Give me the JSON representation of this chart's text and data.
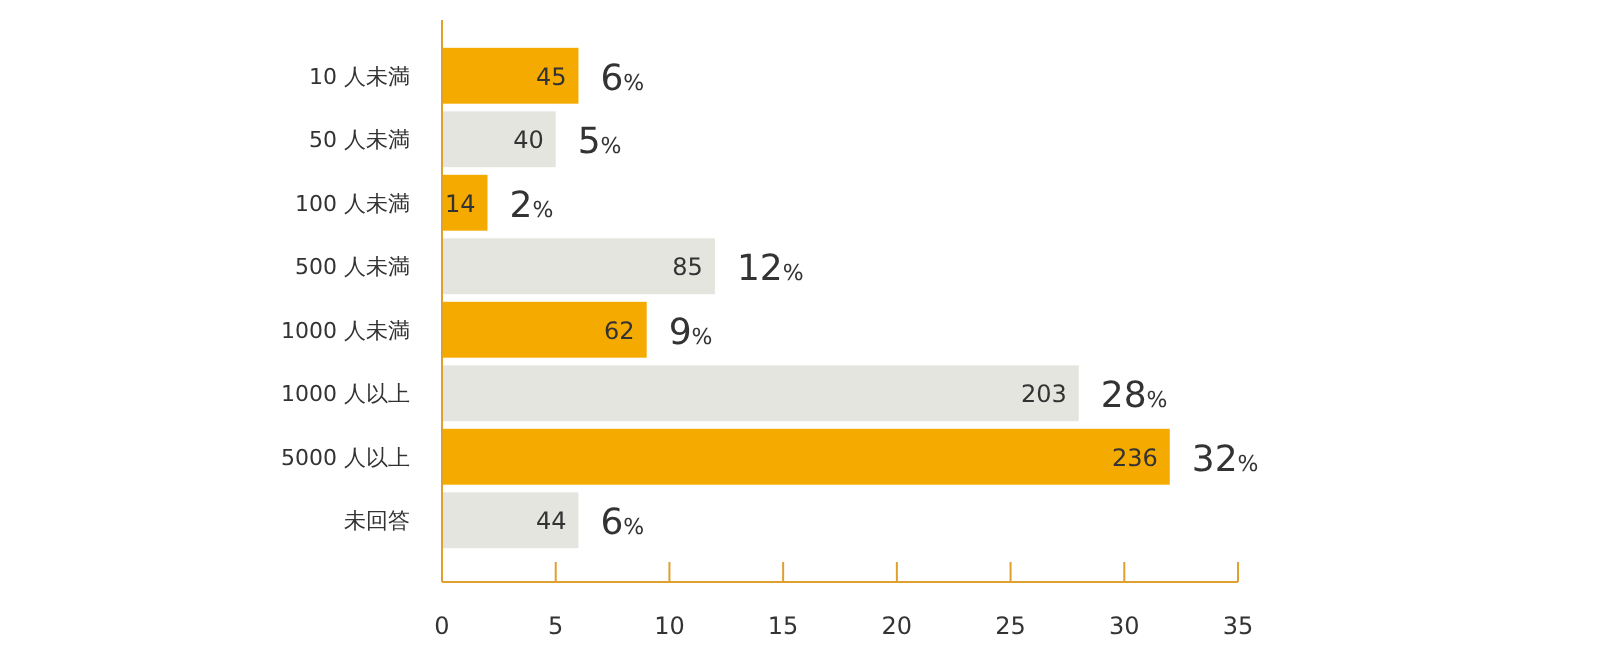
{
  "chart_data": {
    "type": "bar",
    "orientation": "horizontal",
    "categories": [
      "10 人未満",
      "50 人未満",
      "100 人未満",
      "500 人未満",
      "1000 人未満",
      "1000 人以上",
      "5000 人以上",
      "未回答"
    ],
    "values": [
      6,
      5,
      2,
      12,
      9,
      28,
      32,
      6
    ],
    "colors": [
      "#f5aa00",
      "#e5e5e0",
      "#f5aa00",
      "#e5e5e0",
      "#f5aa00",
      "#e5e5e0",
      "#f5aa00",
      "#e5e5e0"
    ],
    "value_labels": [
      "6%",
      "5%",
      "2%",
      "12%",
      "9%",
      "28%",
      "32%",
      "6%"
    ],
    "annotations": [
      {
        "text": "45",
        "x": 6,
        "y": "10 人未満"
      },
      {
        "text": "40",
        "x": 5,
        "y": "50 人未満"
      },
      {
        "text": "14",
        "x": 2,
        "y": "100 人未満"
      },
      {
        "text": "85",
        "x": 12,
        "y": "500 人未満"
      },
      {
        "text": "62",
        "x": 9,
        "y": "1000 人未満"
      },
      {
        "text": "203",
        "x": 28,
        "y": "1000 人以上"
      },
      {
        "text": "236",
        "x": 32,
        "y": "5000 人以上"
      },
      {
        "text": "44",
        "x": 6,
        "y": "未回答"
      }
    ],
    "xlim": [
      0,
      35
    ],
    "xticks": [
      0,
      5,
      10,
      15,
      20,
      25,
      30,
      35
    ],
    "grid": false
  }
}
